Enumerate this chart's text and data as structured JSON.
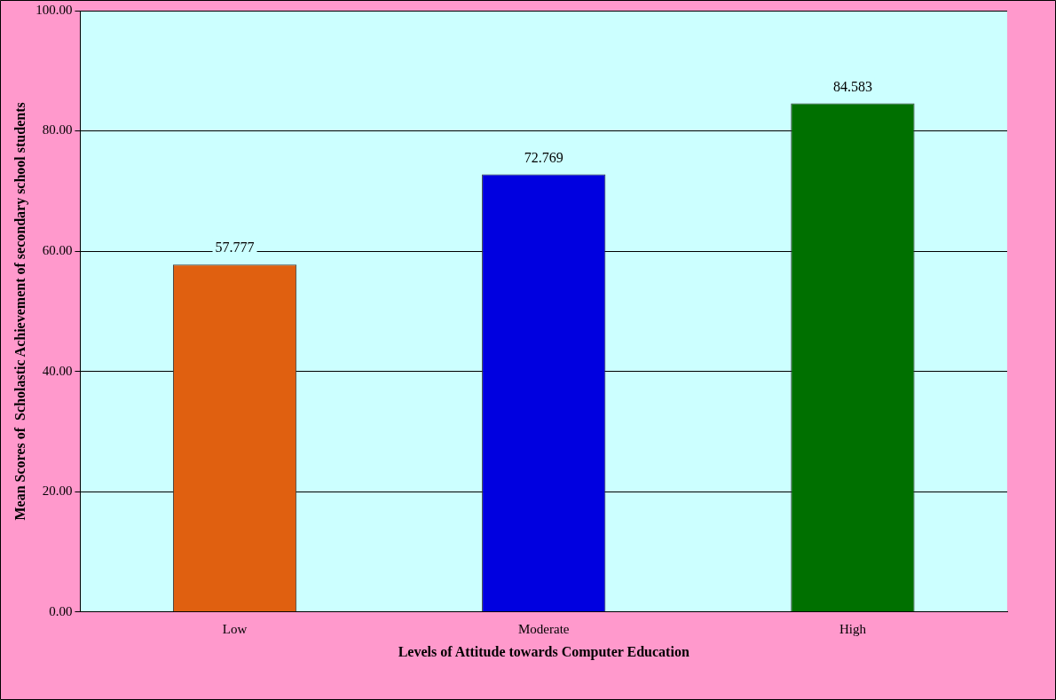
{
  "chart_data": {
    "type": "bar",
    "xlabel": "Levels of Attitude towards Computer Education",
    "ylabel": "Mean Scores of  Scholastic Achievement of secondary school students",
    "categories": [
      "Low",
      "Moderate",
      "High"
    ],
    "values": [
      57.777,
      72.769,
      84.583
    ],
    "colors": [
      "#e06010",
      "#0000e0",
      "#007000"
    ],
    "ylim": [
      0,
      100
    ],
    "yticks": [
      {
        "value": 0,
        "label": "0.00"
      },
      {
        "value": 20,
        "label": "20.00"
      },
      {
        "value": 40,
        "label": "40.00"
      },
      {
        "value": 60,
        "label": "60.00"
      },
      {
        "value": 80,
        "label": "80.00"
      },
      {
        "value": 100,
        "label": "100.00"
      }
    ],
    "grid": "y",
    "data_labels": true,
    "legend": false
  }
}
